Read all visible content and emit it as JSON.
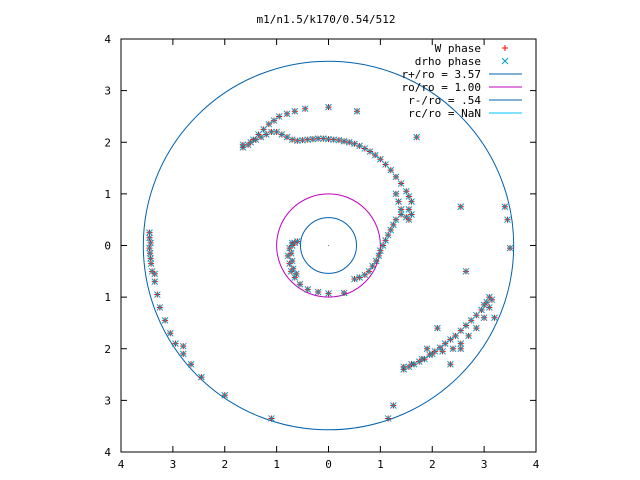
{
  "chart_data": {
    "type": "scatter",
    "title": "m1/n1.5/k170/0.54/512",
    "xlabel": "",
    "ylabel": "",
    "xlim": [
      -4,
      4
    ],
    "ylim": [
      -4,
      4
    ],
    "grid": false,
    "legend_position": "top-right",
    "x_tick_labels": [
      "4",
      "3",
      "2",
      "1",
      "0",
      "1",
      "2",
      "3",
      "4"
    ],
    "y_tick_labels": [
      "4",
      "3",
      "2",
      "1",
      "0",
      "1",
      "2",
      "3",
      "4"
    ],
    "series": [
      {
        "name": "W phase",
        "marker": "+",
        "color": "#ff0000"
      },
      {
        "name": "drho phase",
        "marker": "x",
        "color": "#00a0c0"
      }
    ],
    "circles": [
      {
        "name": "r+/ro = 3.57",
        "r": 3.57,
        "color": "#0060ad"
      },
      {
        "name": "ro/ro = 1.00",
        "r": 1.0,
        "color": "#c000c0"
      },
      {
        "name": "r-/ro = .54",
        "r": 0.54,
        "color": "#0060ad"
      },
      {
        "name": "rc/ro = NaN",
        "r": null,
        "color": "#00c0ff"
      }
    ],
    "points": [
      [
        -3.45,
        0.25
      ],
      [
        -3.45,
        0.15
      ],
      [
        -3.43,
        0.05
      ],
      [
        -3.45,
        -0.05
      ],
      [
        -3.44,
        -0.15
      ],
      [
        -3.43,
        -0.25
      ],
      [
        -3.42,
        -0.35
      ],
      [
        -3.4,
        -0.5
      ],
      [
        -3.35,
        -0.55
      ],
      [
        -3.35,
        -0.7
      ],
      [
        -3.3,
        -0.95
      ],
      [
        -3.25,
        -1.2
      ],
      [
        -3.15,
        -1.45
      ],
      [
        -3.05,
        -1.7
      ],
      [
        -2.95,
        -1.9
      ],
      [
        -2.8,
        -2.1
      ],
      [
        -2.65,
        -2.3
      ],
      [
        -2.45,
        -2.55
      ],
      [
        -2.0,
        -2.9
      ],
      [
        -1.1,
        -3.35
      ],
      [
        -2.8,
        -1.95
      ],
      [
        -1.65,
        1.9
      ],
      [
        -1.55,
        1.95
      ],
      [
        -1.45,
        2.05
      ],
      [
        -1.35,
        2.15
      ],
      [
        -1.25,
        2.25
      ],
      [
        -1.15,
        2.35
      ],
      [
        -1.05,
        2.42
      ],
      [
        -0.95,
        2.5
      ],
      [
        -0.8,
        2.55
      ],
      [
        -0.65,
        2.6
      ],
      [
        -0.45,
        2.65
      ],
      [
        0.0,
        2.68
      ],
      [
        -1.65,
        1.95
      ],
      [
        -1.5,
        2.0
      ],
      [
        -1.4,
        2.05
      ],
      [
        -1.3,
        2.1
      ],
      [
        -1.2,
        2.15
      ],
      [
        -1.1,
        2.2
      ],
      [
        -1.0,
        2.2
      ],
      [
        -0.9,
        2.15
      ],
      [
        -0.8,
        2.1
      ],
      [
        -0.7,
        2.05
      ],
      [
        -0.6,
        2.03
      ],
      [
        -0.5,
        2.04
      ],
      [
        -0.4,
        2.05
      ],
      [
        -0.3,
        2.06
      ],
      [
        -0.2,
        2.07
      ],
      [
        -0.1,
        2.07
      ],
      [
        0.0,
        2.06
      ],
      [
        0.1,
        2.05
      ],
      [
        0.2,
        2.04
      ],
      [
        0.3,
        2.02
      ],
      [
        0.4,
        2.0
      ],
      [
        0.5,
        1.97
      ],
      [
        0.6,
        1.93
      ],
      [
        0.7,
        1.88
      ],
      [
        0.8,
        1.82
      ],
      [
        0.9,
        1.75
      ],
      [
        1.0,
        1.67
      ],
      [
        1.1,
        1.57
      ],
      [
        1.2,
        1.46
      ],
      [
        1.3,
        1.33
      ],
      [
        1.4,
        1.2
      ],
      [
        1.5,
        1.05
      ],
      [
        1.55,
        0.95
      ],
      [
        1.6,
        0.85
      ],
      [
        1.3,
        1.0
      ],
      [
        1.35,
        0.85
      ],
      [
        1.4,
        0.7
      ],
      [
        1.4,
        0.6
      ],
      [
        1.5,
        0.55
      ],
      [
        1.55,
        0.7
      ],
      [
        1.6,
        0.6
      ],
      [
        1.55,
        0.5
      ],
      [
        1.3,
        0.5
      ],
      [
        1.25,
        0.4
      ],
      [
        1.2,
        0.3
      ],
      [
        1.15,
        0.2
      ],
      [
        1.1,
        0.1
      ],
      [
        1.05,
        0.0
      ],
      [
        1.0,
        -0.1
      ],
      [
        0.97,
        -0.2
      ],
      [
        0.92,
        -0.3
      ],
      [
        0.85,
        -0.4
      ],
      [
        0.78,
        -0.5
      ],
      [
        0.7,
        -0.57
      ],
      [
        0.6,
        -0.62
      ],
      [
        0.5,
        -0.65
      ],
      [
        0.55,
        2.6
      ],
      [
        0.3,
        -0.92
      ],
      [
        0.0,
        -0.93
      ],
      [
        -0.2,
        -0.9
      ],
      [
        -0.4,
        -0.85
      ],
      [
        -0.55,
        -0.75
      ],
      [
        -0.65,
        -0.62
      ],
      [
        -0.72,
        -0.5
      ],
      [
        -0.75,
        -0.35
      ],
      [
        -0.78,
        -0.2
      ],
      [
        -0.75,
        -0.05
      ],
      [
        -0.7,
        0.05
      ],
      [
        -0.6,
        0.08
      ],
      [
        -0.62,
        -0.55
      ],
      [
        -0.68,
        -0.45
      ],
      [
        -0.7,
        -0.3
      ],
      [
        -0.72,
        -0.15
      ],
      [
        -0.7,
        0.0
      ],
      [
        -0.65,
        0.05
      ],
      [
        1.7,
        2.1
      ],
      [
        2.55,
        0.75
      ],
      [
        2.65,
        -0.5
      ],
      [
        3.45,
        0.5
      ],
      [
        3.5,
        -0.05
      ],
      [
        3.4,
        0.75
      ],
      [
        1.45,
        -2.4
      ],
      [
        1.55,
        -2.35
      ],
      [
        1.65,
        -2.3
      ],
      [
        1.75,
        -2.25
      ],
      [
        1.85,
        -2.2
      ],
      [
        1.95,
        -2.12
      ],
      [
        2.05,
        -2.05
      ],
      [
        2.15,
        -1.98
      ],
      [
        2.25,
        -1.9
      ],
      [
        2.35,
        -1.82
      ],
      [
        2.45,
        -1.75
      ],
      [
        2.55,
        -1.65
      ],
      [
        2.65,
        -1.55
      ],
      [
        2.75,
        -1.45
      ],
      [
        2.85,
        -1.35
      ],
      [
        2.95,
        -1.25
      ],
      [
        3.05,
        -1.1
      ],
      [
        3.1,
        -1.0
      ],
      [
        1.45,
        -2.35
      ],
      [
        1.6,
        -2.3
      ],
      [
        1.8,
        -2.2
      ],
      [
        2.0,
        -2.1
      ],
      [
        2.2,
        -2.05
      ],
      [
        2.4,
        -2.0
      ],
      [
        2.55,
        -1.9
      ],
      [
        2.7,
        -1.75
      ],
      [
        2.85,
        -1.6
      ],
      [
        3.0,
        -1.4
      ],
      [
        3.1,
        -1.2
      ],
      [
        2.1,
        -1.6
      ],
      [
        1.9,
        -2.0
      ],
      [
        3.2,
        -1.4
      ],
      [
        2.55,
        -2.0
      ],
      [
        2.35,
        -2.3
      ],
      [
        1.25,
        -3.1
      ],
      [
        1.15,
        -3.35
      ],
      [
        3.15,
        -1.05
      ],
      [
        3.0,
        -1.15
      ]
    ]
  }
}
